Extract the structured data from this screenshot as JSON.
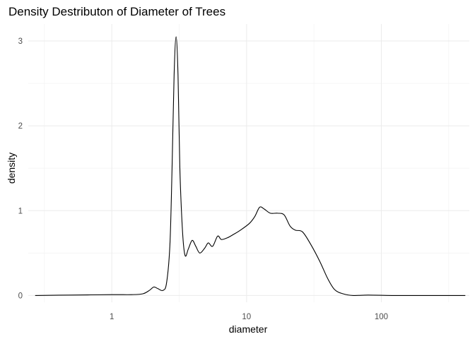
{
  "chart_data": {
    "type": "line",
    "title": "Density Destributon of Diameter of Trees",
    "xlabel": "diameter",
    "ylabel": "density",
    "x_scale": "log10",
    "xlim": [
      0.24,
      450
    ],
    "ylim": [
      -0.08,
      3.2
    ],
    "x_ticks": [
      {
        "value": 1,
        "label": "1"
      },
      {
        "value": 10,
        "label": "10"
      },
      {
        "value": 100,
        "label": "100"
      }
    ],
    "x_minor_ticks": [
      0.316,
      3.16,
      31.6,
      316
    ],
    "y_ticks": [
      {
        "value": 0,
        "label": "0"
      },
      {
        "value": 1,
        "label": "1"
      },
      {
        "value": 2,
        "label": "2"
      },
      {
        "value": 3,
        "label": "3"
      }
    ],
    "y_minor_ticks": [
      0.5,
      1.5,
      2.5
    ],
    "grid": true,
    "series": [
      {
        "color": "#000000",
        "points": [
          [
            0.27,
            0.0
          ],
          [
            0.5,
            0.005
          ],
          [
            1.0,
            0.01
          ],
          [
            1.4,
            0.01
          ],
          [
            1.7,
            0.02
          ],
          [
            1.9,
            0.06
          ],
          [
            2.05,
            0.1
          ],
          [
            2.2,
            0.08
          ],
          [
            2.4,
            0.06
          ],
          [
            2.55,
            0.15
          ],
          [
            2.7,
            0.6
          ],
          [
            2.8,
            1.5
          ],
          [
            2.9,
            2.6
          ],
          [
            3.0,
            3.05
          ],
          [
            3.1,
            2.6
          ],
          [
            3.2,
            1.5
          ],
          [
            3.35,
            0.75
          ],
          [
            3.5,
            0.47
          ],
          [
            3.7,
            0.55
          ],
          [
            3.95,
            0.65
          ],
          [
            4.2,
            0.58
          ],
          [
            4.5,
            0.5
          ],
          [
            4.9,
            0.56
          ],
          [
            5.2,
            0.62
          ],
          [
            5.6,
            0.58
          ],
          [
            6.1,
            0.7
          ],
          [
            6.5,
            0.66
          ],
          [
            7.2,
            0.68
          ],
          [
            8.0,
            0.72
          ],
          [
            9.0,
            0.77
          ],
          [
            10.5,
            0.85
          ],
          [
            11.5,
            0.93
          ],
          [
            12.5,
            1.04
          ],
          [
            13.5,
            1.02
          ],
          [
            15.0,
            0.97
          ],
          [
            17.0,
            0.97
          ],
          [
            19.0,
            0.95
          ],
          [
            21.0,
            0.82
          ],
          [
            23.0,
            0.77
          ],
          [
            26.0,
            0.75
          ],
          [
            30.0,
            0.6
          ],
          [
            35.0,
            0.4
          ],
          [
            40.0,
            0.2
          ],
          [
            45.0,
            0.07
          ],
          [
            52.0,
            0.02
          ],
          [
            62.0,
            0.0
          ],
          [
            80.0,
            0.005
          ],
          [
            120.0,
            0.0
          ],
          [
            200.0,
            0.0
          ],
          [
            420.0,
            0.0
          ]
        ]
      }
    ]
  }
}
